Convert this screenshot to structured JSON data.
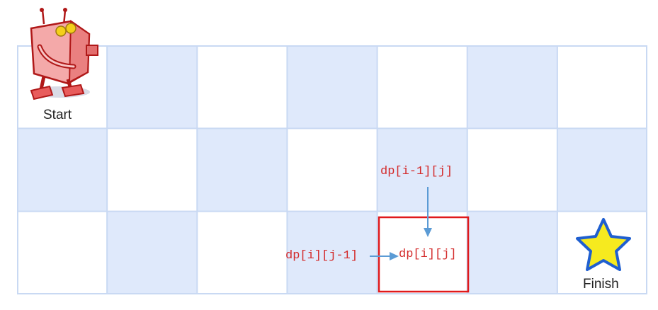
{
  "grid": {
    "rows": 3,
    "cols": 7
  },
  "colors": {
    "cell_blue": "#dfe9fb",
    "cell_white": "#ffffff",
    "grid_line": "#c9d9f3",
    "highlight_border": "#e0191b",
    "arrow": "#5b9bd5",
    "label_text": "#d32a2a"
  },
  "start": {
    "label": "Start",
    "icon": "robot-icon"
  },
  "finish": {
    "label": "Finish",
    "icon": "star-icon"
  },
  "labels": {
    "top_neighbor": "dp[i-1][j]",
    "left_neighbor": "dp[i][j-1]",
    "current": "dp[i][j]"
  },
  "highlight": {
    "row": 2,
    "col": 4
  }
}
